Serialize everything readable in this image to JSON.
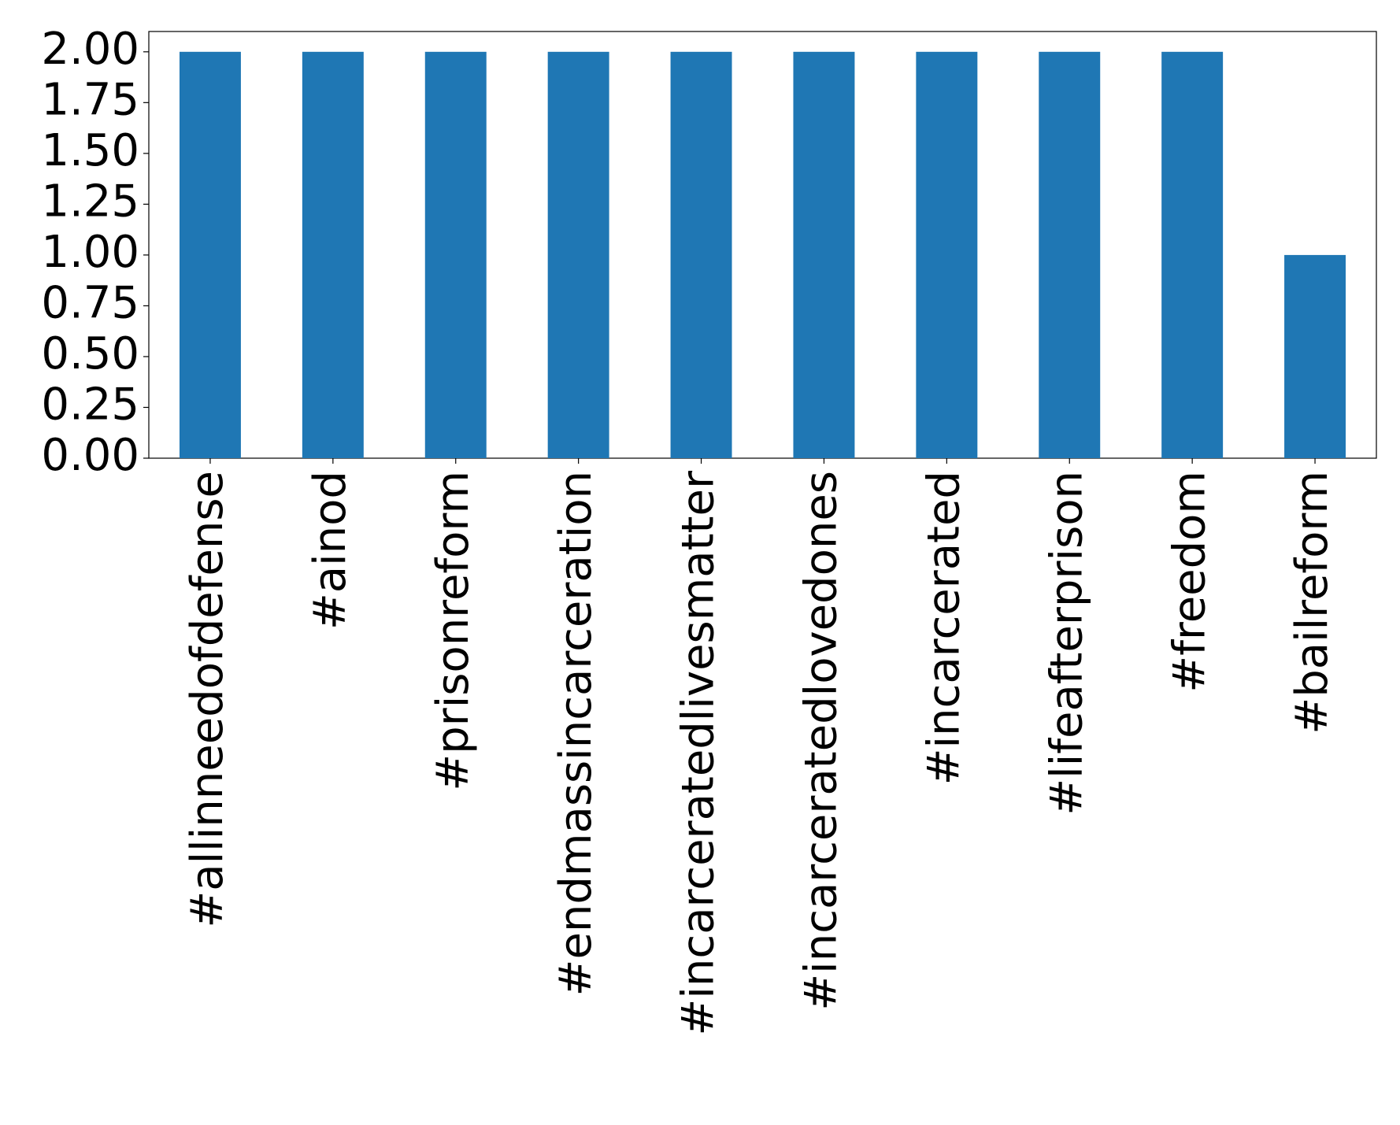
{
  "chart_data": {
    "type": "bar",
    "categories": [
      "#allinneedofdefense",
      "#ainod",
      "#prisonreform",
      "#endmassincarceration",
      "#incarceratedlivesmatter",
      "#incarceratedlovedones",
      "#incarcerated",
      "#lifeafterprison",
      "#freedom",
      "#bailreform"
    ],
    "values": [
      2,
      2,
      2,
      2,
      2,
      2,
      2,
      2,
      2,
      1
    ],
    "color": "#1f77b4",
    "ylim": [
      0,
      2.1
    ],
    "yticks": [
      {
        "value": 0,
        "label": "0.00"
      },
      {
        "value": 0.25,
        "label": "0.25"
      },
      {
        "value": 0.5,
        "label": "0.50"
      },
      {
        "value": 0.75,
        "label": "0.75"
      },
      {
        "value": 1,
        "label": "1.00"
      },
      {
        "value": 1.25,
        "label": "1.25"
      },
      {
        "value": 1.5,
        "label": "1.50"
      },
      {
        "value": 1.75,
        "label": "1.75"
      },
      {
        "value": 2,
        "label": "2.00"
      }
    ],
    "grid": false
  }
}
